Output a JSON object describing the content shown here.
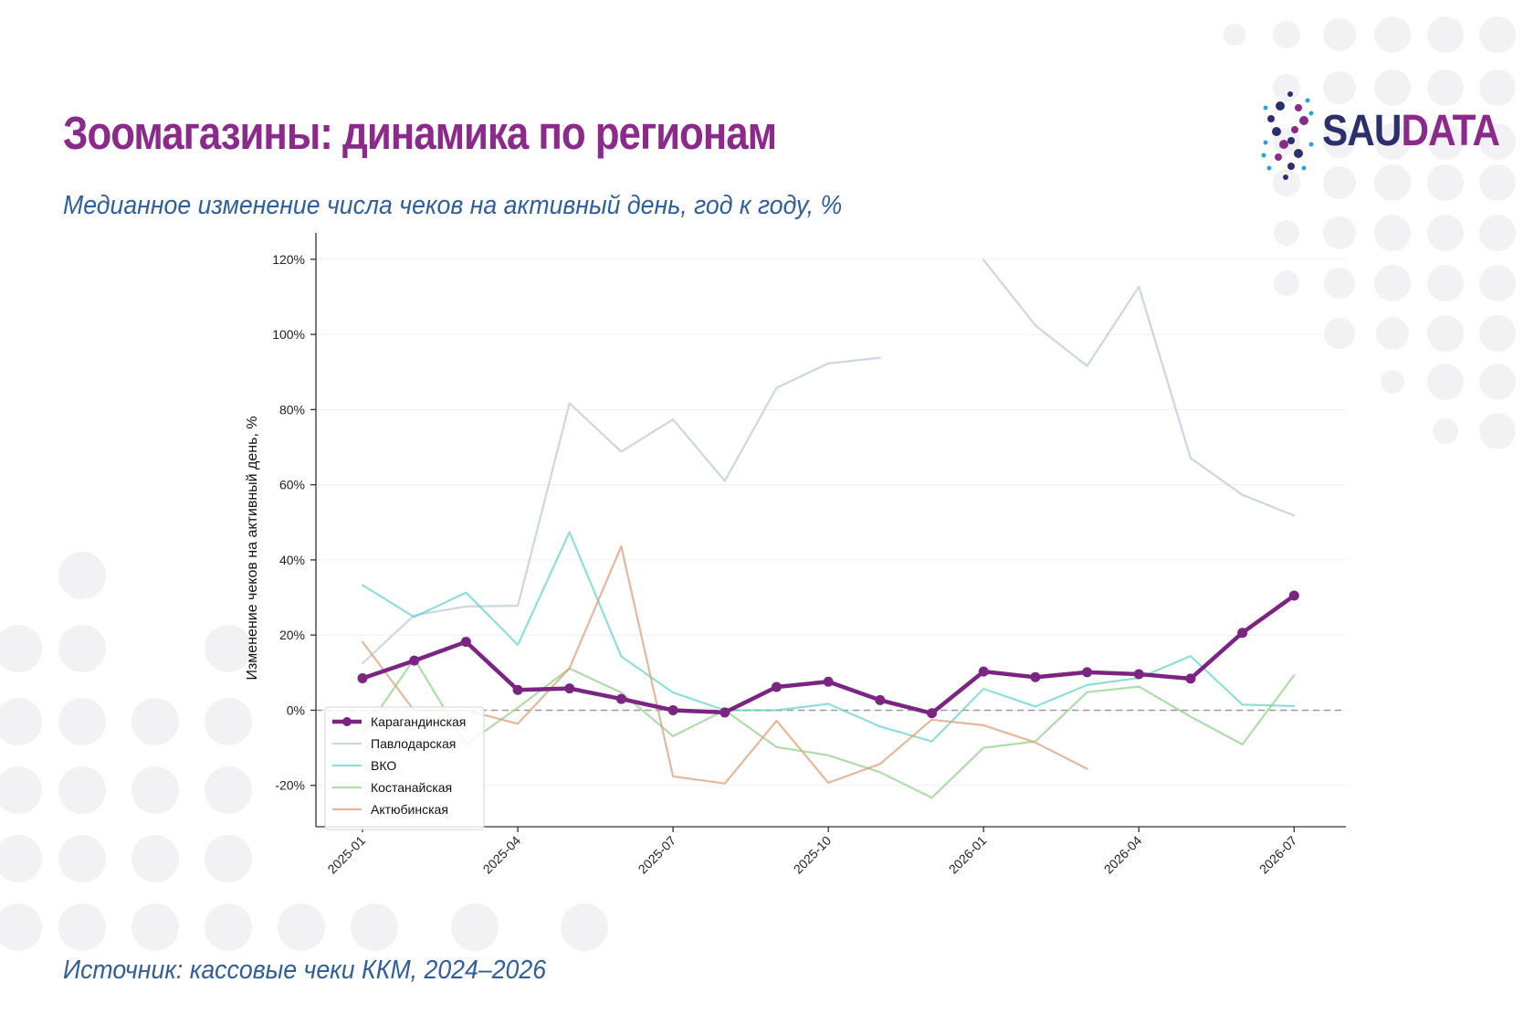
{
  "header": {
    "title": "Зоомагазины: динамика по регионам",
    "subtitle": "Медианное изменение числа чеков на активный день, год к году, %",
    "source": "Источник: кассовые чеки ККМ, 2024–2026"
  },
  "logo": {
    "part_a": "SAU",
    "part_b": "DATA"
  },
  "colors": {
    "title": "#8b2a8b",
    "subtitle": "#2f5f96",
    "logo_navy": "#2b2f6b",
    "logo_purple": "#8b2a8b"
  },
  "chart_data": {
    "type": "line",
    "title": "",
    "xlabel": "",
    "ylabel": "Изменение чеков на активный день, %",
    "ylim": [
      -31,
      127
    ],
    "yticks": [
      -20,
      0,
      20,
      40,
      60,
      80,
      100,
      120
    ],
    "ytick_labels": [
      "-20%",
      "0%",
      "20%",
      "40%",
      "60%",
      "80%",
      "100%",
      "120%"
    ],
    "x": [
      "2025-01",
      "2025-02",
      "2025-03",
      "2025-04",
      "2025-05",
      "2025-06",
      "2025-07",
      "2025-08",
      "2025-09",
      "2025-10",
      "2025-11",
      "2025-12",
      "2026-01",
      "2026-02",
      "2026-03",
      "2026-04",
      "2026-05",
      "2026-06",
      "2026-07"
    ],
    "xtick_labels": [
      "2025-01",
      "2025-04",
      "2025-07",
      "2025-10",
      "2026-01",
      "2026-04",
      "2026-07"
    ],
    "xlim_months": [
      -0.9,
      19.0
    ],
    "reference_line": 0,
    "grid": "horizontal, faint",
    "legend_position": "lower-left",
    "series": [
      {
        "name": "Карагандинская",
        "color": "#7b2583",
        "width": 4.5,
        "opacity": 1,
        "markers": true,
        "values": [
          8.5,
          13.2,
          18.2,
          5.4,
          5.8,
          3.0,
          0.0,
          -0.6,
          6.2,
          7.6,
          2.7,
          -0.8,
          10.3,
          8.8,
          10.1,
          9.6,
          8.4,
          20.6,
          30.5
        ]
      },
      {
        "name": "Павлодарская",
        "color": "#b9c9da",
        "width": 2.2,
        "opacity": 0.75,
        "markers": false,
        "values": [
          12.5,
          25.3,
          27.6,
          27.8,
          81.7,
          68.8,
          77.4,
          61.0,
          85.8,
          92.3,
          93.8,
          null,
          119.8,
          102.4,
          91.6,
          112.7,
          67.1,
          57.3,
          51.8
        ]
      },
      {
        "name": "ВКО",
        "color": "#5fd0c8",
        "width": 2.2,
        "opacity": 0.7,
        "markers": false,
        "values": [
          33.3,
          24.8,
          31.3,
          17.4,
          47.4,
          14.3,
          4.7,
          0.0,
          0.0,
          1.7,
          -4.3,
          -8.3,
          5.7,
          1.0,
          6.7,
          8.6,
          14.4,
          1.5,
          1.1
        ]
      },
      {
        "name": "Костанайская",
        "color": "#8ccf84",
        "width": 2.2,
        "opacity": 0.7,
        "markers": false,
        "values": [
          -6.4,
          13.7,
          -9.1,
          0.7,
          11.1,
          4.7,
          -6.9,
          0.0,
          -9.8,
          -12.0,
          -16.5,
          -23.3,
          -10.0,
          -8.3,
          4.8,
          6.3,
          -1.7,
          -9.1,
          9.3
        ]
      },
      {
        "name": "Актюбинская",
        "color": "#d9a07a",
        "width": 2.2,
        "opacity": 0.75,
        "markers": false,
        "values": [
          18.2,
          -0.1,
          0.0,
          -3.6,
          11.2,
          43.6,
          -17.6,
          -19.5,
          -2.8,
          -19.3,
          -14.3,
          -2.5,
          -4.0,
          -8.6,
          -15.6,
          null,
          null,
          null,
          null
        ]
      }
    ]
  }
}
